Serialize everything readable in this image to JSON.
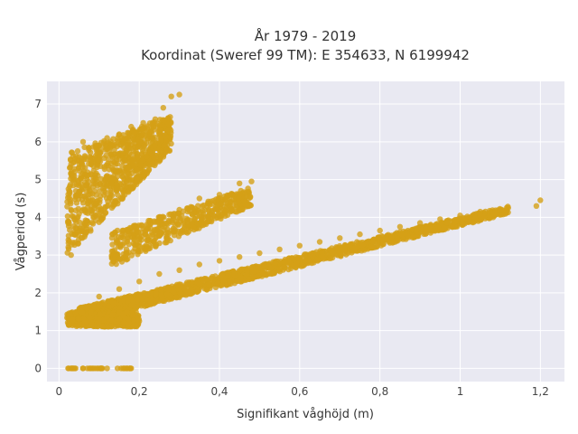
{
  "chart_data": {
    "type": "scatter",
    "title_line1": "År 1979 - 2019",
    "title_line2": "Koordinat (Sweref 99 TM): E 354633, N 6199942",
    "xlabel": "Signifikant våghöjd (m)",
    "ylabel": "Vågperiod (s)",
    "xlim": [
      -0.03,
      1.26
    ],
    "ylim": [
      -0.35,
      7.6
    ],
    "x_ticks": [
      0,
      0.2,
      0.4,
      0.6,
      0.8,
      1,
      1.2
    ],
    "x_tick_labels": [
      "0",
      "0,2",
      "0,4",
      "0,6",
      "0,8",
      "1",
      "1,2"
    ],
    "y_ticks": [
      0,
      1,
      2,
      3,
      4,
      5,
      6,
      7
    ],
    "y_tick_labels": [
      "0",
      "1",
      "2",
      "3",
      "4",
      "5",
      "6",
      "7"
    ],
    "grid": true,
    "colors": {
      "marker": "#D4A017",
      "plot_bg": "#E9E9F2",
      "grid": "#ffffff"
    },
    "clusters": [
      {
        "name": "swell_band",
        "x_range": [
          0.02,
          0.28
        ],
        "y_start": [
          3.0,
          5.7
        ],
        "y_end": [
          5.8,
          6.7
        ]
      },
      {
        "name": "main_band",
        "x_range": [
          0.05,
          1.12
        ],
        "y_start": [
          1.2,
          1.6
        ],
        "y_end": [
          4.1,
          4.3
        ]
      },
      {
        "name": "mid_band",
        "x_range": [
          0.13,
          0.48
        ],
        "y_start": [
          2.7,
          3.6
        ],
        "y_end": [
          4.3,
          4.8
        ]
      },
      {
        "name": "calm",
        "x_range": [
          0.02,
          0.2
        ],
        "y_start": [
          1.1,
          1.5
        ],
        "y_end": [
          1.1,
          1.5
        ]
      },
      {
        "name": "zero_period",
        "x_range": [
          0.02,
          0.18
        ],
        "y_start": [
          0,
          0
        ],
        "y_end": [
          0,
          0
        ]
      }
    ],
    "points": [
      [
        0.03,
        3.0
      ],
      [
        0.03,
        4.2
      ],
      [
        0.04,
        5.0
      ],
      [
        0.05,
        5.6
      ],
      [
        0.06,
        6.0
      ],
      [
        0.08,
        5.4
      ],
      [
        0.1,
        5.9
      ],
      [
        0.12,
        6.1
      ],
      [
        0.15,
        6.2
      ],
      [
        0.18,
        6.4
      ],
      [
        0.21,
        6.5
      ],
      [
        0.24,
        6.6
      ],
      [
        0.26,
        6.9
      ],
      [
        0.28,
        7.2
      ],
      [
        0.3,
        7.25
      ],
      [
        0.08,
        4.3
      ],
      [
        0.12,
        5.1
      ],
      [
        0.16,
        5.7
      ],
      [
        0.2,
        6.0
      ],
      [
        0.25,
        6.3
      ],
      [
        0.07,
        1.6
      ],
      [
        0.1,
        1.9
      ],
      [
        0.15,
        2.1
      ],
      [
        0.2,
        2.3
      ],
      [
        0.25,
        2.5
      ],
      [
        0.3,
        2.6
      ],
      [
        0.35,
        2.75
      ],
      [
        0.4,
        2.85
      ],
      [
        0.45,
        2.95
      ],
      [
        0.5,
        3.05
      ],
      [
        0.55,
        3.15
      ],
      [
        0.6,
        3.25
      ],
      [
        0.65,
        3.35
      ],
      [
        0.7,
        3.45
      ],
      [
        0.75,
        3.55
      ],
      [
        0.8,
        3.65
      ],
      [
        0.85,
        3.75
      ],
      [
        0.9,
        3.85
      ],
      [
        0.95,
        3.95
      ],
      [
        1.0,
        4.05
      ],
      [
        1.05,
        4.15
      ],
      [
        1.1,
        4.2
      ],
      [
        1.12,
        4.25
      ],
      [
        1.2,
        4.45
      ],
      [
        1.19,
        4.3
      ],
      [
        0.15,
        2.9
      ],
      [
        0.2,
        3.5
      ],
      [
        0.25,
        3.9
      ],
      [
        0.3,
        4.2
      ],
      [
        0.35,
        4.5
      ],
      [
        0.4,
        4.6
      ],
      [
        0.45,
        4.9
      ],
      [
        0.48,
        4.95
      ],
      [
        0.05,
        1.3
      ],
      [
        0.1,
        1.2
      ],
      [
        0.15,
        1.3
      ],
      [
        0.2,
        1.25
      ],
      [
        0.03,
        0.0
      ],
      [
        0.06,
        0.0
      ],
      [
        0.09,
        0.0
      ],
      [
        0.12,
        0.0
      ],
      [
        0.16,
        0.0
      ],
      [
        0.18,
        0.0
      ]
    ]
  }
}
